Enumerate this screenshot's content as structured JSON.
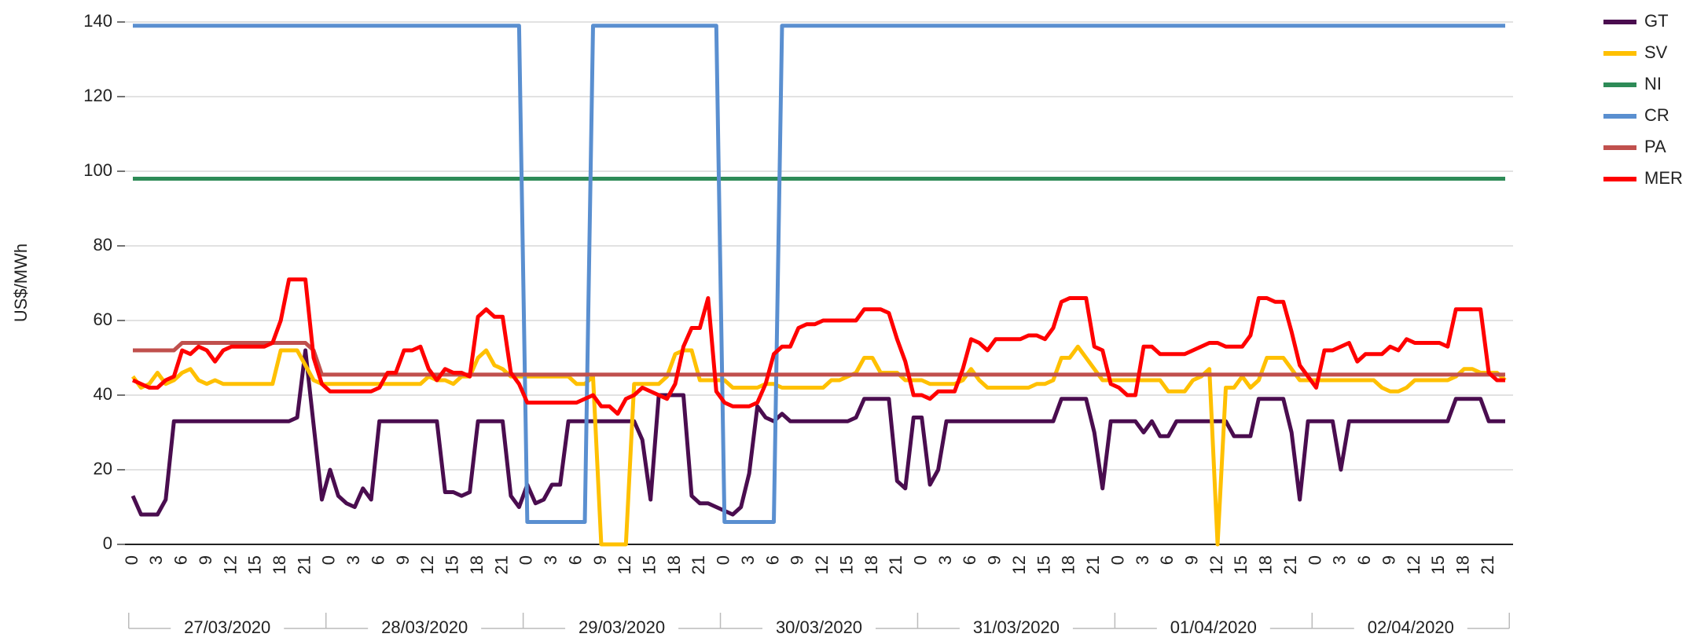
{
  "chart_data": {
    "type": "line",
    "y_label": "US$/MWh",
    "ylim": [
      0,
      140
    ],
    "yticks": [
      0,
      20,
      40,
      60,
      80,
      100,
      120,
      140
    ],
    "grid": true,
    "categories": [
      "0",
      null,
      null,
      "3",
      null,
      null,
      "6",
      null,
      null,
      "9",
      null,
      null,
      "12",
      null,
      null,
      "15",
      null,
      null,
      "18",
      null,
      null,
      "21",
      null,
      null,
      "0",
      null,
      null,
      "3",
      null,
      null,
      "6",
      null,
      null,
      "9",
      null,
      null,
      "12",
      null,
      null,
      "15",
      null,
      null,
      "18",
      null,
      null,
      "21",
      null,
      null,
      "0",
      null,
      null,
      "3",
      null,
      null,
      "6",
      null,
      null,
      "9",
      null,
      null,
      "12",
      null,
      null,
      "15",
      null,
      null,
      "18",
      null,
      null,
      "21",
      null,
      null,
      "0",
      null,
      null,
      "3",
      null,
      null,
      "6",
      null,
      null,
      "9",
      null,
      null,
      "12",
      null,
      null,
      "15",
      null,
      null,
      "18",
      null,
      null,
      "21",
      null,
      null,
      "0",
      null,
      null,
      "3",
      null,
      null,
      "6",
      null,
      null,
      "9",
      null,
      null,
      "12",
      null,
      null,
      "15",
      null,
      null,
      "18",
      null,
      null,
      "21",
      null,
      null,
      "0",
      null,
      null,
      "3",
      null,
      null,
      "6",
      null,
      null,
      "9",
      null,
      null,
      "12",
      null,
      null,
      "15",
      null,
      null,
      "18",
      null,
      null,
      "21",
      null,
      null,
      "0",
      null,
      null,
      "3",
      null,
      null,
      "6",
      null,
      null,
      "9",
      null,
      null,
      "12",
      null,
      null,
      "15",
      null,
      null,
      "18",
      null,
      null,
      "21",
      null,
      null
    ],
    "x_groups": [
      "27/03/2020",
      "28/03/2020",
      "29/03/2020",
      "30/03/2020",
      "31/03/2020",
      "01/04/2020",
      "02/04/2020"
    ],
    "series": [
      {
        "name": "GT",
        "color": "#4a0d4f",
        "values": [
          13,
          8,
          8,
          8,
          12,
          33,
          33,
          33,
          33,
          33,
          33,
          33,
          33,
          33,
          33,
          33,
          33,
          33,
          33,
          33,
          34,
          52,
          32,
          12,
          20,
          13,
          11,
          10,
          15,
          12,
          33,
          33,
          33,
          33,
          33,
          33,
          33,
          33,
          14,
          14,
          13,
          14,
          33,
          33,
          33,
          33,
          13,
          10,
          16,
          11,
          12,
          16,
          16,
          33,
          33,
          33,
          33,
          33,
          33,
          33,
          33,
          33,
          28,
          12,
          40,
          40,
          40,
          40,
          13,
          11,
          11,
          10,
          9,
          8,
          10,
          19,
          37,
          34,
          33,
          35,
          33,
          33,
          33,
          33,
          33,
          33,
          33,
          33,
          34,
          39,
          39,
          39,
          39,
          17,
          15,
          34,
          34,
          16,
          20,
          33,
          33,
          33,
          33,
          33,
          33,
          33,
          33,
          33,
          33,
          33,
          33,
          33,
          33,
          39,
          39,
          39,
          39,
          30,
          15,
          33,
          33,
          33,
          33,
          30,
          33,
          29,
          29,
          33,
          33,
          33,
          33,
          33,
          33,
          33,
          29,
          29,
          29,
          39,
          39,
          39,
          39,
          30,
          12,
          33,
          33,
          33,
          33,
          20,
          33,
          33,
          33,
          33,
          33,
          33,
          33,
          33,
          33,
          33,
          33,
          33,
          33,
          39,
          39,
          39,
          39,
          33,
          33,
          33
        ]
      },
      {
        "name": "SV",
        "color": "#ffc000",
        "values": [
          45,
          42,
          43,
          46,
          43,
          44,
          46,
          47,
          44,
          43,
          44,
          43,
          43,
          43,
          43,
          43,
          43,
          43,
          52,
          52,
          52,
          48,
          44,
          43,
          43,
          43,
          43,
          43,
          43,
          43,
          43,
          43,
          43,
          43,
          43,
          43,
          45,
          44,
          44,
          43,
          45,
          45,
          50,
          52,
          48,
          47,
          45,
          45,
          45,
          45,
          45,
          45,
          45,
          45,
          43,
          43,
          45,
          0,
          0,
          0,
          0,
          43,
          43,
          43,
          43,
          45,
          51,
          52,
          52,
          44,
          44,
          44,
          44,
          42,
          42,
          42,
          42,
          43,
          43,
          42,
          42,
          42,
          42,
          42,
          42,
          44,
          44,
          45,
          46,
          50,
          50,
          46,
          46,
          46,
          44,
          44,
          44,
          43,
          43,
          43,
          43,
          44,
          47,
          44,
          42,
          42,
          42,
          42,
          42,
          42,
          43,
          43,
          44,
          50,
          50,
          53,
          50,
          47,
          44,
          44,
          44,
          44,
          44,
          44,
          44,
          44,
          41,
          41,
          41,
          44,
          45,
          47,
          0,
          42,
          42,
          45,
          42,
          44,
          50,
          50,
          50,
          47,
          44,
          44,
          44,
          44,
          44,
          44,
          44,
          44,
          44,
          44,
          42,
          41,
          41,
          42,
          44,
          44,
          44,
          44,
          44,
          45,
          47,
          47,
          46,
          46,
          46,
          44
        ]
      },
      {
        "name": "NI",
        "color": "#2e8b57",
        "values": [
          98,
          98,
          98,
          98,
          98,
          98,
          98,
          98,
          98,
          98,
          98,
          98,
          98,
          98,
          98,
          98,
          98,
          98,
          98,
          98,
          98,
          98,
          98,
          98,
          98,
          98,
          98,
          98,
          98,
          98,
          98,
          98,
          98,
          98,
          98,
          98,
          98,
          98,
          98,
          98,
          98,
          98,
          98,
          98,
          98,
          98,
          98,
          98,
          98,
          98,
          98,
          98,
          98,
          98,
          98,
          98,
          98,
          98,
          98,
          98,
          98,
          98,
          98,
          98,
          98,
          98,
          98,
          98,
          98,
          98,
          98,
          98,
          98,
          98,
          98,
          98,
          98,
          98,
          98,
          98,
          98,
          98,
          98,
          98,
          98,
          98,
          98,
          98,
          98,
          98,
          98,
          98,
          98,
          98,
          98,
          98,
          98,
          98,
          98,
          98,
          98,
          98,
          98,
          98,
          98,
          98,
          98,
          98,
          98,
          98,
          98,
          98,
          98,
          98,
          98,
          98,
          98,
          98,
          98,
          98,
          98,
          98,
          98,
          98,
          98,
          98,
          98,
          98,
          98,
          98,
          98,
          98,
          98,
          98,
          98,
          98,
          98,
          98,
          98,
          98,
          98,
          98,
          98,
          98,
          98,
          98,
          98,
          98,
          98,
          98,
          98,
          98,
          98,
          98,
          98,
          98,
          98,
          98,
          98,
          98,
          98,
          98,
          98,
          98,
          98,
          98,
          98,
          98
        ]
      },
      {
        "name": "CR",
        "color": "#5a8fd0",
        "values": [
          139,
          139,
          139,
          139,
          139,
          139,
          139,
          139,
          139,
          139,
          139,
          139,
          139,
          139,
          139,
          139,
          139,
          139,
          139,
          139,
          139,
          139,
          139,
          139,
          139,
          139,
          139,
          139,
          139,
          139,
          139,
          139,
          139,
          139,
          139,
          139,
          139,
          139,
          139,
          139,
          139,
          139,
          139,
          139,
          139,
          139,
          139,
          139,
          6,
          6,
          6,
          6,
          6,
          6,
          6,
          6,
          139,
          139,
          139,
          139,
          139,
          139,
          139,
          139,
          139,
          139,
          139,
          139,
          139,
          139,
          139,
          139,
          6,
          6,
          6,
          6,
          6,
          6,
          6,
          139,
          139,
          139,
          139,
          139,
          139,
          139,
          139,
          139,
          139,
          139,
          139,
          139,
          139,
          139,
          139,
          139,
          139,
          139,
          139,
          139,
          139,
          139,
          139,
          139,
          139,
          139,
          139,
          139,
          139,
          139,
          139,
          139,
          139,
          139,
          139,
          139,
          139,
          139,
          139,
          139,
          139,
          139,
          139,
          139,
          139,
          139,
          139,
          139,
          139,
          139,
          139,
          139,
          139,
          139,
          139,
          139,
          139,
          139,
          139,
          139,
          139,
          139,
          139,
          139,
          139,
          139,
          139,
          139,
          139,
          139,
          139,
          139,
          139,
          139,
          139,
          139,
          139,
          139,
          139,
          139,
          139,
          139,
          139,
          139,
          139,
          139,
          139,
          139
        ]
      },
      {
        "name": "PA",
        "color": "#c0504d",
        "values": [
          52,
          52,
          52,
          52,
          52,
          52,
          54,
          54,
          54,
          54,
          54,
          54,
          54,
          54,
          54,
          54,
          54,
          54,
          54,
          54,
          54,
          54,
          52,
          45.5,
          45.5,
          45.5,
          45.5,
          45.5,
          45.5,
          45.5,
          45.5,
          45.5,
          45.5,
          45.5,
          45.5,
          45.5,
          45.5,
          45.5,
          45.5,
          45.5,
          45.5,
          45.5,
          45.5,
          45.5,
          45.5,
          45.5,
          45.5,
          45.5,
          45.5,
          45.5,
          45.5,
          45.5,
          45.5,
          45.5,
          45.5,
          45.5,
          45.5,
          45.5,
          45.5,
          45.5,
          45.5,
          45.5,
          45.5,
          45.5,
          45.5,
          45.5,
          45.5,
          45.5,
          45.5,
          45.5,
          45.5,
          45.5,
          45.5,
          45.5,
          45.5,
          45.5,
          45.5,
          45.5,
          45.5,
          45.5,
          45.5,
          45.5,
          45.5,
          45.5,
          45.5,
          45.5,
          45.5,
          45.5,
          45.5,
          45.5,
          45.5,
          45.5,
          45.5,
          45.5,
          45.5,
          45.5,
          45.5,
          45.5,
          45.5,
          45.5,
          45.5,
          45.5,
          45.5,
          45.5,
          45.5,
          45.5,
          45.5,
          45.5,
          45.5,
          45.5,
          45.5,
          45.5,
          45.5,
          45.5,
          45.5,
          45.5,
          45.5,
          45.5,
          45.5,
          45.5,
          45.5,
          45.5,
          45.5,
          45.5,
          45.5,
          45.5,
          45.5,
          45.5,
          45.5,
          45.5,
          45.5,
          45.5,
          45.5,
          45.5,
          45.5,
          45.5,
          45.5,
          45.5,
          45.5,
          45.5,
          45.5,
          45.5,
          45.5,
          45.5,
          45.5,
          45.5,
          45.5,
          45.5,
          45.5,
          45.5,
          45.5,
          45.5,
          45.5,
          45.5,
          45.5,
          45.5,
          45.5,
          45.5,
          45.5,
          45.5,
          45.5,
          45.5,
          45.5,
          45.5,
          45.5,
          45.5,
          45.5,
          45.5
        ]
      },
      {
        "name": "MER",
        "color": "#ff0000",
        "values": [
          44,
          43,
          42,
          42,
          44,
          45,
          52,
          51,
          53,
          52,
          49,
          52,
          53,
          53,
          53,
          53,
          53,
          54,
          60,
          71,
          71,
          71,
          50,
          43,
          41,
          41,
          41,
          41,
          41,
          41,
          42,
          46,
          46,
          52,
          52,
          53,
          47,
          44,
          47,
          46,
          46,
          45,
          61,
          63,
          61,
          61,
          46,
          43,
          38,
          38,
          38,
          38,
          38,
          38,
          38,
          39,
          40,
          37,
          37,
          35,
          39,
          40,
          42,
          41,
          40,
          39,
          43,
          53,
          58,
          58,
          66,
          41,
          38,
          37,
          37,
          37,
          38,
          43,
          51,
          53,
          53,
          58,
          59,
          59,
          60,
          60,
          60,
          60,
          60,
          63,
          63,
          63,
          62,
          55,
          49,
          40,
          40,
          39,
          41,
          41,
          41,
          47,
          55,
          54,
          52,
          55,
          55,
          55,
          55,
          56,
          56,
          55,
          58,
          65,
          66,
          66,
          66,
          53,
          52,
          43,
          42,
          40,
          40,
          53,
          53,
          51,
          51,
          51,
          51,
          52,
          53,
          54,
          54,
          53,
          53,
          53,
          56,
          66,
          66,
          65,
          65,
          57,
          48,
          45,
          42,
          52,
          52,
          53,
          54,
          49,
          51,
          51,
          51,
          53,
          52,
          55,
          54,
          54,
          54,
          54,
          53,
          63,
          63,
          63,
          63,
          46,
          44,
          44
        ]
      }
    ]
  }
}
